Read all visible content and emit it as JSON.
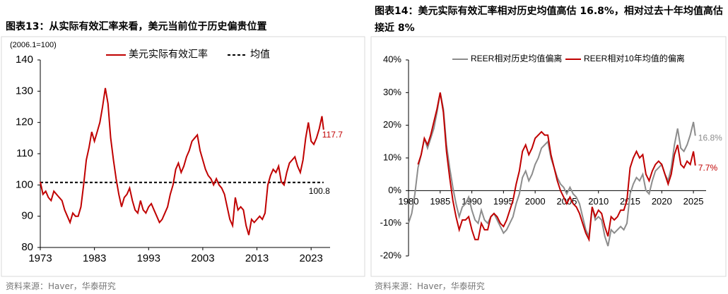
{
  "chart_data": [
    {
      "type": "line",
      "title": "图表13：从实际有效汇率来看，美元当前位于历史偏贵位置",
      "unit_label": "(2006.1=100)",
      "source": "资料来源：Haver，华泰研究",
      "x": [
        1973,
        1973.5,
        1974,
        1974.5,
        1975,
        1975.5,
        1976,
        1976.5,
        1977,
        1977.5,
        1978,
        1978.5,
        1979,
        1979.5,
        1980,
        1980.5,
        1981,
        1981.5,
        1982,
        1982.5,
        1983,
        1983.5,
        1984,
        1984.5,
        1985,
        1985.5,
        1986,
        1986.5,
        1987,
        1987.5,
        1988,
        1988.5,
        1989,
        1989.5,
        1990,
        1990.5,
        1991,
        1991.5,
        1992,
        1992.5,
        1993,
        1993.5,
        1994,
        1994.5,
        1995,
        1995.5,
        1996,
        1996.5,
        1997,
        1997.5,
        1998,
        1998.5,
        1999,
        1999.5,
        2000,
        2000.5,
        2001,
        2001.5,
        2002,
        2002.5,
        2003,
        2003.5,
        2004,
        2004.5,
        2005,
        2005.5,
        2006,
        2006.5,
        2007,
        2007.5,
        2008,
        2008.5,
        2009,
        2009.5,
        2010,
        2010.5,
        2011,
        2011.5,
        2012,
        2012.5,
        2013,
        2013.5,
        2014,
        2014.5,
        2015,
        2015.5,
        2016,
        2016.5,
        2017,
        2017.5,
        2018,
        2018.5,
        2019,
        2019.5,
        2020,
        2020.5,
        2021,
        2021.5,
        2022,
        2022.5,
        2023,
        2023.5,
        2024,
        2024.5,
        2025,
        2025.3
      ],
      "series": [
        {
          "name": "美元实际有效汇率",
          "color": "#c00000",
          "values": [
            101,
            97,
            98,
            96,
            95,
            98,
            97,
            96,
            95,
            92,
            90,
            88,
            91,
            90,
            90,
            93,
            100,
            108,
            112,
            117,
            114,
            117,
            120,
            125,
            131,
            126,
            115,
            108,
            102,
            97,
            93,
            96,
            97,
            99,
            95,
            92,
            91,
            95,
            92,
            91,
            93,
            94,
            92,
            90,
            88,
            89,
            91,
            93,
            97,
            100,
            105,
            107,
            104,
            106,
            109,
            111,
            114,
            115,
            116,
            111,
            108,
            105,
            103,
            102,
            100,
            102,
            100,
            99,
            97,
            93,
            89,
            87,
            96,
            92,
            93,
            92,
            87,
            84,
            89,
            88,
            89,
            90,
            89,
            91,
            100,
            103,
            105,
            104,
            106,
            101,
            100,
            104,
            107,
            108,
            109,
            106,
            104,
            108,
            115,
            120,
            114,
            113,
            115,
            118,
            122,
            117.7
          ]
        }
      ],
      "mean_line": {
        "name": "均值",
        "value": 100.8,
        "color": "#000000"
      },
      "xlim": [
        1973,
        2026.5
      ],
      "xticks": [
        1973,
        1983,
        1993,
        2003,
        2013,
        2023
      ],
      "ylim": [
        80,
        140
      ],
      "yticks": [
        80,
        90,
        100,
        110,
        120,
        130,
        140
      ],
      "grid": false
    },
    {
      "type": "line",
      "title": "图表14：美元实际有效汇率相对历史均值高估 16.8%，相对过去十年均值高估接近 8%",
      "source": "资料来源：Haver，华泰研究",
      "x": [
        1980,
        1980.5,
        1981,
        1981.5,
        1982,
        1982.5,
        1983,
        1983.5,
        1984,
        1984.5,
        1985,
        1985.5,
        1986,
        1986.5,
        1987,
        1987.5,
        1988,
        1988.5,
        1989,
        1989.5,
        1990,
        1990.5,
        1991,
        1991.5,
        1992,
        1992.5,
        1993,
        1993.5,
        1994,
        1994.5,
        1995,
        1995.5,
        1996,
        1996.5,
        1997,
        1997.5,
        1998,
        1998.5,
        1999,
        1999.5,
        2000,
        2000.5,
        2001,
        2001.5,
        2002,
        2002.5,
        2003,
        2003.5,
        2004,
        2004.5,
        2005,
        2005.5,
        2006,
        2006.5,
        2007,
        2007.5,
        2008,
        2008.5,
        2009,
        2009.5,
        2010,
        2010.5,
        2011,
        2011.5,
        2012,
        2012.5,
        2013,
        2013.5,
        2014,
        2014.5,
        2015,
        2015.5,
        2016,
        2016.5,
        2017,
        2017.5,
        2018,
        2018.5,
        2019,
        2019.5,
        2020,
        2020.5,
        2021,
        2021.5,
        2022,
        2022.5,
        2023,
        2023.5,
        2024,
        2024.5,
        2025,
        2025.3
      ],
      "series": [
        {
          "name": "REER相对历史均值偏离",
          "color": "#8c8c8c",
          "values": [
            -10,
            -7,
            -1,
            7,
            11,
            16,
            13,
            16,
            19,
            24,
            30,
            25,
            14,
            7,
            1,
            -4,
            -8,
            -5,
            -4,
            -2,
            -6,
            -9,
            -10,
            -6,
            -9,
            -10,
            -8,
            -7,
            -9,
            -11,
            -13,
            -12,
            -10,
            -8,
            -4,
            -1,
            4,
            6,
            3,
            5,
            8,
            10,
            13,
            14,
            15,
            10,
            7,
            4,
            2,
            1,
            -1,
            1,
            -1,
            -2,
            -4,
            -8,
            -12,
            -14,
            -5,
            -9,
            -8,
            -9,
            -14,
            -17,
            -12,
            -13,
            -12,
            -11,
            -12,
            -10,
            -1,
            2,
            4,
            3,
            5,
            0,
            -1,
            3,
            6,
            7,
            8,
            5,
            3,
            7,
            14,
            19,
            13,
            12,
            14,
            17,
            21,
            16.8
          ],
          "value_labels": {
            "91": "16.8%"
          }
        },
        {
          "name": "REER相对10年均值的偏离",
          "color": "#c00000",
          "values": [
            null,
            null,
            null,
            8,
            11,
            16,
            14,
            17,
            21,
            25,
            30,
            24,
            12,
            4,
            -3,
            -8,
            -12,
            -9,
            -9,
            -8,
            -12,
            -15,
            -15,
            -10,
            -12,
            -12,
            -8,
            -7,
            -8,
            -10,
            -11,
            -9,
            -6,
            -3,
            2,
            6,
            12,
            14,
            11,
            13,
            16,
            17,
            18,
            17,
            17,
            11,
            7,
            3,
            0,
            -2,
            -4,
            -2,
            -4,
            -5,
            -7,
            -10,
            -13,
            -15,
            -5,
            -8,
            -6,
            -7,
            -11,
            -14,
            -8,
            -9,
            -8,
            -6,
            -6,
            -3,
            7,
            10,
            12,
            10,
            11,
            5,
            3,
            6,
            8,
            9,
            8,
            5,
            2,
            5,
            11,
            14,
            8,
            7,
            9,
            8,
            12,
            7.7
          ],
          "value_labels": {
            "91": "7.7%"
          }
        }
      ],
      "xlim": [
        1980,
        2027
      ],
      "xticks": [
        1980,
        1985,
        1990,
        1995,
        2000,
        2005,
        2010,
        2015,
        2020,
        2025
      ],
      "ylim": [
        -20,
        40
      ],
      "yticks": [
        {
          "value": -20,
          "label": "-20%"
        },
        {
          "value": -10,
          "label": "-10%"
        },
        {
          "value": 0,
          "label": "0%"
        },
        {
          "value": 10,
          "label": "10%"
        },
        {
          "value": 20,
          "label": "20%"
        },
        {
          "value": 30,
          "label": "30%"
        },
        {
          "value": 40,
          "label": "40%"
        }
      ],
      "grid": false
    }
  ]
}
